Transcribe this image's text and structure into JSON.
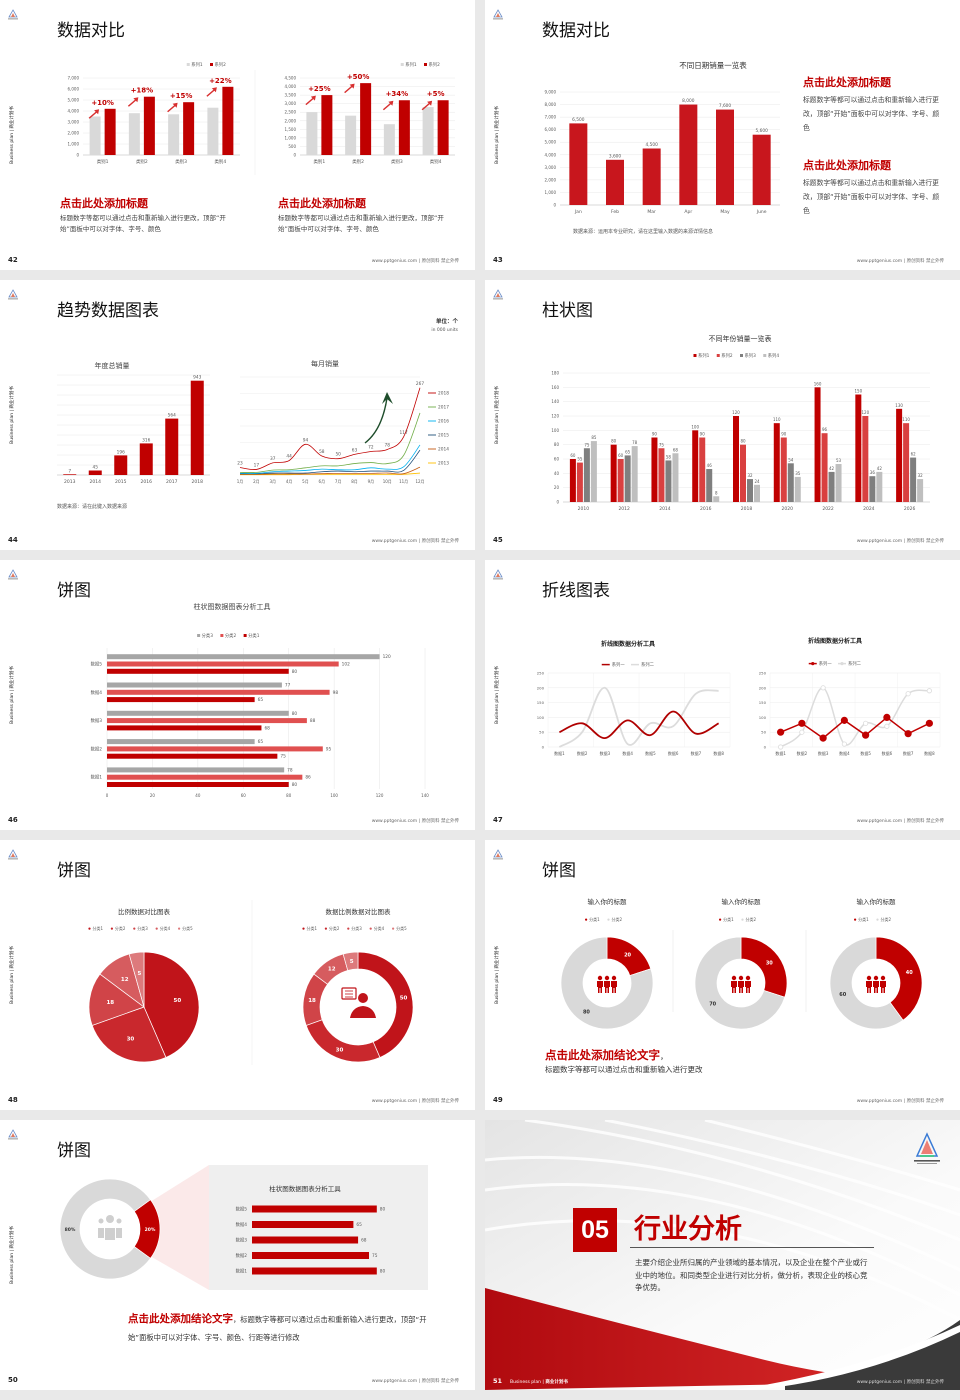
{
  "common": {
    "side_text": "Business plan | 商业计划书",
    "footer": "www.pptgenius.com | 原创资料 禁止外传"
  },
  "colors": {
    "accent": "#c00000",
    "gray": "#d9d9d9",
    "dark": "#3a3a3a",
    "background": "#e9e9e9"
  },
  "slides": [
    {
      "page": "42",
      "title": "数据对比",
      "blocks": [
        {
          "heading": "点击此处添加标题",
          "body": "标题数字等都可以通过点击和重新输入进行更改，顶部“开始”面板中可以对字体、字号、颜色"
        },
        {
          "heading": "点击此处添加标题",
          "body": "标题数字等都可以通过点击和重新输入进行更改，顶部“开始”面板中可以对字体、字号、颜色"
        }
      ]
    },
    {
      "page": "43",
      "title": "数据对比",
      "source": "数据来源：运用本专业研究，请在这里输入数据的来源详情信息",
      "blocks": [
        {
          "heading": "点击此处添加标题",
          "body": "标题数字等都可以通过点击和重新输入进行更改，顶部“开始”面板中可以对字体、字号、颜色"
        },
        {
          "heading": "点击此处添加标题",
          "body": "标题数字等都可以通过点击和重新输入进行更改，顶部“开始”面板中可以对字体、字号、颜色"
        }
      ]
    },
    {
      "page": "44",
      "title": "趋势数据图表",
      "unit": "单位：个",
      "unit_en": "in 000 units",
      "source": "数据来源：请在此键入数据来源"
    },
    {
      "page": "45",
      "title": "柱状图"
    },
    {
      "page": "46",
      "title": "饼图"
    },
    {
      "page": "47",
      "title": "折线图表"
    },
    {
      "page": "48",
      "title": "饼图"
    },
    {
      "page": "49",
      "title": "饼图",
      "heading": "点击此处添加结论文字",
      "comma": "，",
      "body": "标题数字等都可以通过点击和重新输入进行更改"
    },
    {
      "page": "50",
      "title": "饼图",
      "heading": "点击此处添加结论文字",
      "body": "，标题数字等都可以通过点击和重新输入进行更改，顶部“开始”面板中可以对字体、字号、颜色、行距等进行修改"
    },
    {
      "page": "51",
      "number": "05",
      "title": "行业分析",
      "body": "主要介绍企业所归属的产业领域的基本情况，以及企业在整个产业或行业中的地位。和同类型企业进行对比分析，做分析，表现企业的核心竞争优势。",
      "footer_en": "Business plan",
      "footer_cn": "商业计划书"
    }
  ],
  "chart_data": [
    {
      "type": "bar",
      "categories": [
        "类别1",
        "类别2",
        "类别3",
        "类别4"
      ],
      "series": [
        {
          "name": "系列1",
          "values": [
            3500,
            3800,
            3700,
            4300
          ]
        },
        {
          "name": "系列2",
          "values": [
            4200,
            5300,
            4800,
            6200
          ]
        }
      ],
      "growth": [
        "+10%",
        "+18%",
        "+15%",
        "+22%"
      ],
      "ylim": [
        0,
        7000
      ],
      "ystep": 1000,
      "yticks": [
        "0",
        "1,000",
        "2,000",
        "3,000",
        "4,000",
        "5,000",
        "6,000",
        "7,000"
      ],
      "grid": true,
      "legend": "top-right"
    },
    {
      "type": "bar",
      "categories": [
        "类别1",
        "类别2",
        "类别3",
        "类别4"
      ],
      "series": [
        {
          "name": "系列1",
          "values": [
            2500,
            2300,
            1800,
            2800
          ]
        },
        {
          "name": "系列2",
          "values": [
            3500,
            4200,
            3200,
            3200
          ]
        }
      ],
      "growth": [
        "+25%",
        "+50%",
        "+34%",
        "+5%"
      ],
      "ylim": [
        0,
        4500
      ],
      "ystep": 500,
      "yticks": [
        "0",
        "500",
        "1,000",
        "1,500",
        "2,000",
        "2,500",
        "3,000",
        "3,500",
        "4,000",
        "4,500"
      ],
      "grid": true,
      "legend": "top-right"
    },
    {
      "type": "bar",
      "title": "不同日期销量一览表",
      "categories": [
        "Jan",
        "Feb",
        "Mar",
        "Apr",
        "May",
        "June"
      ],
      "series": [
        {
          "values": [
            6500,
            3600,
            4500,
            8000,
            7600,
            5600
          ],
          "labels": [
            "6,500",
            "3,600",
            "4,500",
            "8,000",
            "7,600",
            "5,600"
          ]
        }
      ],
      "ylim": [
        0,
        9000
      ],
      "ystep": 1000,
      "yticks": [
        "0",
        "1,000",
        "2,000",
        "3,000",
        "4,000",
        "5,000",
        "6,000",
        "7,000",
        "8,000",
        "9,000"
      ],
      "grid": true
    },
    {
      "type": "bar",
      "title": "年度总销量",
      "categories": [
        "2013",
        "2014",
        "2015",
        "2016",
        "2017",
        "2018"
      ],
      "series": [
        {
          "values": [
            7,
            45,
            196,
            316,
            564,
            943
          ]
        }
      ],
      "ylim": [
        0,
        1000
      ],
      "ystep": 100,
      "grid": true
    },
    {
      "type": "line",
      "title": "每月销量",
      "categories": [
        "1月",
        "2月",
        "3月",
        "4月",
        "5月",
        "6月",
        "7月",
        "8月",
        "9月",
        "10月",
        "11月",
        "12月"
      ],
      "series": [
        {
          "name": "2018",
          "values": [
            23,
            17,
            37,
            44,
            94,
            58,
            50,
            63,
            72,
            78,
            117,
            267
          ]
        },
        {
          "name": "2017",
          "values": [
            8,
            8,
            15,
            16,
            22,
            28,
            28,
            35,
            38,
            35,
            60,
            190
          ]
        },
        {
          "name": "2016",
          "values": [
            5,
            5,
            10,
            12,
            14,
            18,
            16,
            16,
            22,
            18,
            25,
            92
          ]
        },
        {
          "name": "2015",
          "values": [
            4,
            4,
            6,
            6,
            6,
            10,
            12,
            10,
            12,
            12,
            14,
            76
          ]
        },
        {
          "name": "2014",
          "values": [
            2,
            2,
            3,
            3,
            3,
            4,
            5,
            5,
            5,
            6,
            4,
            24
          ]
        },
        {
          "name": "2013",
          "values": [
            1,
            1,
            1,
            1,
            2,
            2,
            2,
            2,
            2,
            2,
            2,
            6
          ]
        }
      ],
      "ylim": [
        0,
        300
      ],
      "ystep": 50,
      "legend": "right"
    },
    {
      "type": "bar",
      "title": "不同年份销量一览表",
      "categories": [
        "2010",
        "2012",
        "2014",
        "2016",
        "2018",
        "2020",
        "2022",
        "2024",
        "2026"
      ],
      "series": [
        {
          "name": "系列1",
          "values": [
            60,
            80,
            90,
            100,
            120,
            110,
            160,
            150,
            130
          ]
        },
        {
          "name": "系列2",
          "values": [
            55,
            60,
            75,
            90,
            80,
            90,
            96,
            120,
            110
          ]
        },
        {
          "name": "系列3",
          "values": [
            75,
            65,
            58,
            46,
            32,
            54,
            42,
            36,
            62
          ]
        },
        {
          "name": "系列4",
          "values": [
            85,
            78,
            68,
            8,
            24,
            35,
            53,
            42,
            32
          ]
        }
      ],
      "ylim": [
        0,
        180
      ],
      "ystep": 20,
      "yticks": [
        "0",
        "20",
        "40",
        "60",
        "80",
        "100",
        "120",
        "140",
        "160",
        "180"
      ],
      "grid": true,
      "legend": "top"
    },
    {
      "type": "bar",
      "orientation": "horizontal",
      "title": "柱状图数据图表分析工具",
      "categories": [
        "数据1",
        "数据2",
        "数据3",
        "数据4",
        "数据5"
      ],
      "series": [
        {
          "name": "分类1",
          "values": [
            80,
            75,
            68,
            65,
            80
          ]
        },
        {
          "name": "分类2",
          "values": [
            86,
            95,
            88,
            98,
            102
          ]
        },
        {
          "name": "分类3",
          "values": [
            78,
            65,
            80,
            77,
            120
          ]
        }
      ],
      "xlim": [
        0,
        140
      ],
      "xstep": 20,
      "xticks": [
        "0",
        "20",
        "40",
        "60",
        "80",
        "100",
        "120",
        "140"
      ],
      "grid": true,
      "legend": "top"
    },
    {
      "type": "line",
      "title": "折线图数据分析工具",
      "categories": [
        "数据1",
        "数据2",
        "数据3",
        "数据4",
        "数据5",
        "数据6",
        "数据7",
        "数据8"
      ],
      "series": [
        {
          "name": "系列一",
          "values": [
            50,
            80,
            30,
            90,
            40,
            120,
            45,
            80
          ]
        },
        {
          "name": "系列二",
          "values": [
            0,
            50,
            200,
            10,
            80,
            70,
            180,
            190
          ]
        }
      ],
      "ylim": [
        0,
        250
      ],
      "ystep": 50,
      "yticks": [
        "0",
        "50",
        "100",
        "150",
        "200",
        "250"
      ],
      "grid": true,
      "legend": "top"
    },
    {
      "type": "line",
      "title": "折线图数据分析工具",
      "categories": [
        "数据1",
        "数据2",
        "数据3",
        "数据4",
        "数据5",
        "数据6",
        "数据7",
        "数据8"
      ],
      "series": [
        {
          "name": "系列一",
          "values": [
            50,
            80,
            30,
            90,
            40,
            100,
            45,
            80
          ]
        },
        {
          "name": "系列二",
          "values": [
            0,
            50,
            200,
            10,
            80,
            70,
            180,
            190
          ]
        }
      ],
      "ylim": [
        0,
        250
      ],
      "ystep": 50,
      "yticks": [
        "0",
        "50",
        "100",
        "150",
        "200",
        "250"
      ],
      "grid": true,
      "markers": true,
      "legend": "top"
    },
    {
      "type": "pie",
      "title": "比例数据对比图表",
      "categories": [
        "分类1",
        "分类2",
        "分类3",
        "分类4",
        "分类5"
      ],
      "values": [
        50,
        30,
        18,
        12,
        5
      ],
      "legend": "top"
    },
    {
      "type": "pie",
      "variant": "donut",
      "title": "数据比例数据对比图表",
      "categories": [
        "分类1",
        "分类2",
        "分类3",
        "分类4",
        "分类5"
      ],
      "values": [
        50,
        30,
        18,
        12,
        5
      ],
      "legend": "top"
    },
    {
      "type": "pie",
      "variant": "donut",
      "title": "输入你的标题",
      "categories": [
        "分类1",
        "分类2"
      ],
      "values": [
        20,
        80
      ],
      "legend": "top"
    },
    {
      "type": "pie",
      "variant": "donut",
      "title": "输入你的标题",
      "categories": [
        "分类1",
        "分类2"
      ],
      "values": [
        30,
        70
      ],
      "legend": "top"
    },
    {
      "type": "pie",
      "variant": "donut",
      "title": "输入你的标题",
      "categories": [
        "分类1",
        "分类2"
      ],
      "values": [
        40,
        60
      ],
      "legend": "top"
    },
    {
      "type": "pie",
      "variant": "donut",
      "values": [
        20,
        80
      ],
      "labels": [
        "20%",
        "80%"
      ]
    },
    {
      "type": "bar",
      "orientation": "horizontal",
      "title": "柱状图数据图表分析工具",
      "categories": [
        "数据1",
        "数据2",
        "数据3",
        "数据4",
        "数据5"
      ],
      "series": [
        {
          "values": [
            80,
            75,
            68,
            65,
            80
          ]
        }
      ]
    }
  ]
}
